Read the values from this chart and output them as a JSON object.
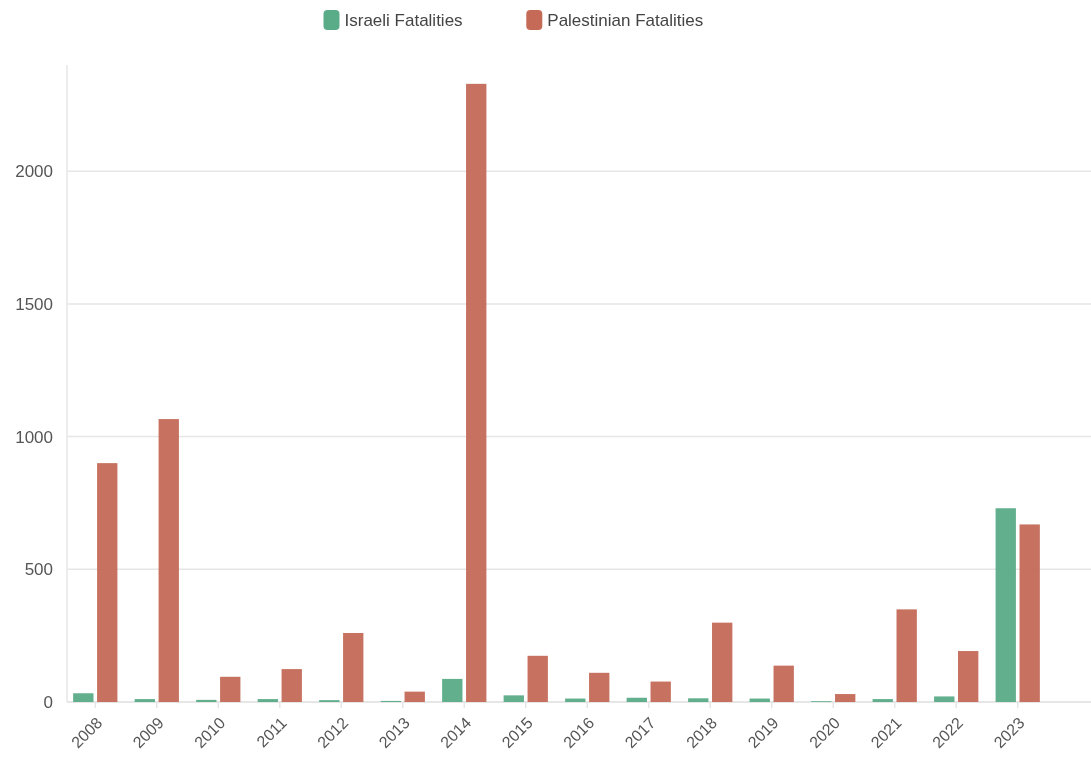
{
  "chart_data": {
    "type": "bar",
    "categories": [
      "2008",
      "2009",
      "2010",
      "2011",
      "2012",
      "2013",
      "2014",
      "2015",
      "2016",
      "2017",
      "2018",
      "2019",
      "2020",
      "2021",
      "2022",
      "2023"
    ],
    "series": [
      {
        "name": "Israeli Fatalities",
        "color": "#5aab88",
        "values": [
          33,
          11,
          8,
          11,
          7,
          4,
          87,
          25,
          13,
          16,
          14,
          13,
          3,
          11,
          21,
          730
        ]
      },
      {
        "name": "Palestinian Fatalities",
        "color": "#c46a57",
        "values": [
          900,
          1066,
          95,
          124,
          260,
          39,
          2329,
          174,
          110,
          77,
          299,
          137,
          30,
          349,
          192,
          669
        ]
      }
    ],
    "ylim": [
      0,
      2400
    ],
    "yticks": [
      0,
      500,
      1000,
      1500,
      2000
    ],
    "grid": "y",
    "legend": "top"
  }
}
